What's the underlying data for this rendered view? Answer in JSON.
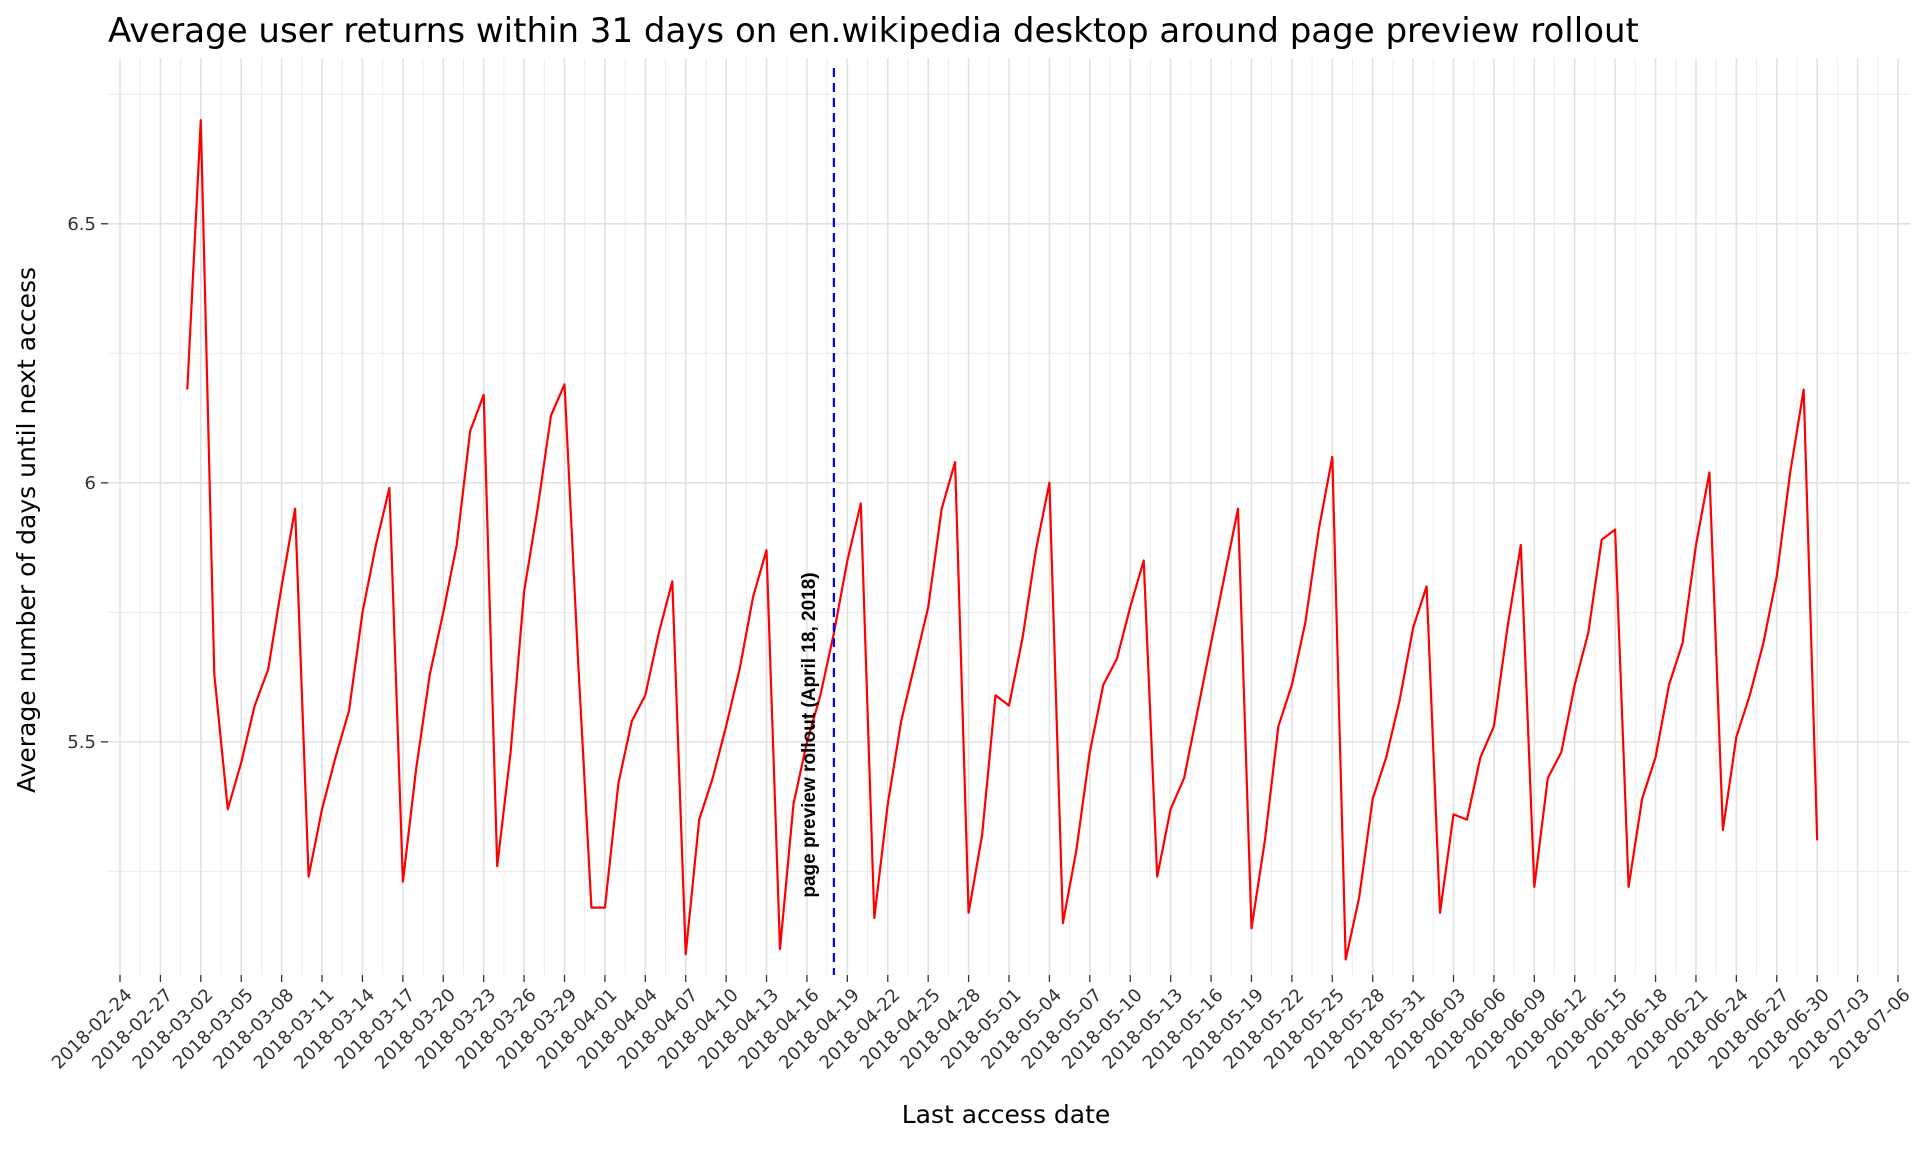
{
  "chart_data": {
    "type": "line",
    "title": "Average user returns within 31 days on en.wikipedia desktop around page preview rollout",
    "xlabel": "Last access date",
    "ylabel": "Average number of days until next access",
    "xlim": [
      "2018-02-24",
      "2018-07-06"
    ],
    "ylim": [
      5.05,
      6.82
    ],
    "x_ticks": [
      "2018-02-24",
      "2018-02-27",
      "2018-03-02",
      "2018-03-05",
      "2018-03-08",
      "2018-03-11",
      "2018-03-14",
      "2018-03-17",
      "2018-03-20",
      "2018-03-23",
      "2018-03-26",
      "2018-03-29",
      "2018-04-01",
      "2018-04-04",
      "2018-04-07",
      "2018-04-10",
      "2018-04-13",
      "2018-04-16",
      "2018-04-19",
      "2018-04-22",
      "2018-04-25",
      "2018-04-28",
      "2018-05-01",
      "2018-05-04",
      "2018-05-07",
      "2018-05-10",
      "2018-05-13",
      "2018-05-16",
      "2018-05-19",
      "2018-05-22",
      "2018-05-25",
      "2018-05-28",
      "2018-05-31",
      "2018-06-03",
      "2018-06-06",
      "2018-06-09",
      "2018-06-12",
      "2018-06-15",
      "2018-06-18",
      "2018-06-21",
      "2018-06-24",
      "2018-06-27",
      "2018-06-30",
      "2018-07-03",
      "2018-07-06"
    ],
    "y_ticks": [
      "5.5",
      "6",
      "6.5"
    ],
    "grid": true,
    "series": [
      {
        "color": "#ff0000",
        "x": [
          "2018-03-01",
          "2018-03-02",
          "2018-03-03",
          "2018-03-04",
          "2018-03-05",
          "2018-03-06",
          "2018-03-07",
          "2018-03-08",
          "2018-03-09",
          "2018-03-10",
          "2018-03-11",
          "2018-03-12",
          "2018-03-13",
          "2018-03-14",
          "2018-03-15",
          "2018-03-16",
          "2018-03-17",
          "2018-03-18",
          "2018-03-19",
          "2018-03-20",
          "2018-03-21",
          "2018-03-22",
          "2018-03-23",
          "2018-03-24",
          "2018-03-25",
          "2018-03-26",
          "2018-03-27",
          "2018-03-28",
          "2018-03-29",
          "2018-03-30",
          "2018-03-31",
          "2018-04-01",
          "2018-04-02",
          "2018-04-03",
          "2018-04-04",
          "2018-04-05",
          "2018-04-06",
          "2018-04-07",
          "2018-04-08",
          "2018-04-09",
          "2018-04-10",
          "2018-04-11",
          "2018-04-12",
          "2018-04-13",
          "2018-04-14",
          "2018-04-15",
          "2018-04-16",
          "2018-04-17",
          "2018-04-18",
          "2018-04-19",
          "2018-04-20",
          "2018-04-21",
          "2018-04-22",
          "2018-04-23",
          "2018-04-24",
          "2018-04-25",
          "2018-04-26",
          "2018-04-27",
          "2018-04-28",
          "2018-04-29",
          "2018-04-30",
          "2018-05-01",
          "2018-05-02",
          "2018-05-03",
          "2018-05-04",
          "2018-05-05",
          "2018-05-06",
          "2018-05-07",
          "2018-05-08",
          "2018-05-09",
          "2018-05-10",
          "2018-05-11",
          "2018-05-12",
          "2018-05-13",
          "2018-05-14",
          "2018-05-15",
          "2018-05-16",
          "2018-05-17",
          "2018-05-18",
          "2018-05-19",
          "2018-05-20",
          "2018-05-21",
          "2018-05-22",
          "2018-05-23",
          "2018-05-24",
          "2018-05-25",
          "2018-05-26",
          "2018-05-27",
          "2018-05-28",
          "2018-05-29",
          "2018-05-30",
          "2018-05-31",
          "2018-06-01",
          "2018-06-02",
          "2018-06-03",
          "2018-06-04",
          "2018-06-05",
          "2018-06-06",
          "2018-06-07",
          "2018-06-08",
          "2018-06-09",
          "2018-06-10",
          "2018-06-11",
          "2018-06-12",
          "2018-06-13",
          "2018-06-14",
          "2018-06-15",
          "2018-06-16",
          "2018-06-17",
          "2018-06-18",
          "2018-06-19",
          "2018-06-20",
          "2018-06-21",
          "2018-06-22",
          "2018-06-23",
          "2018-06-24",
          "2018-06-25",
          "2018-06-26",
          "2018-06-27",
          "2018-06-28",
          "2018-06-29",
          "2018-06-30"
        ],
        "y": [
          6.18,
          6.7,
          5.63,
          5.37,
          5.46,
          5.57,
          5.64,
          5.8,
          5.95,
          5.24,
          5.37,
          5.47,
          5.56,
          5.75,
          5.88,
          5.99,
          5.23,
          5.45,
          5.63,
          5.75,
          5.88,
          6.1,
          6.17,
          5.26,
          5.48,
          5.79,
          5.95,
          6.13,
          6.19,
          5.66,
          5.18,
          5.18,
          5.42,
          5.54,
          5.59,
          5.71,
          5.81,
          5.09,
          5.35,
          5.43,
          5.53,
          5.64,
          5.78,
          5.87,
          5.1,
          5.38,
          5.5,
          5.59,
          5.71,
          5.85,
          5.96,
          5.16,
          5.38,
          5.54,
          5.65,
          5.76,
          5.95,
          6.04,
          5.17,
          5.32,
          5.59,
          5.57,
          5.7,
          5.87,
          6.0,
          5.15,
          5.29,
          5.48,
          5.61,
          5.66,
          5.76,
          5.85,
          5.24,
          5.37,
          5.43,
          5.56,
          5.69,
          5.82,
          5.95,
          5.14,
          5.31,
          5.53,
          5.61,
          5.73,
          5.91,
          6.05,
          5.08,
          5.2,
          5.39,
          5.47,
          5.58,
          5.72,
          5.8,
          5.17,
          5.36,
          5.35,
          5.47,
          5.53,
          5.72,
          5.88,
          5.22,
          5.43,
          5.48,
          5.61,
          5.71,
          5.89,
          5.91,
          5.22,
          5.39,
          5.47,
          5.61,
          5.69,
          5.88,
          6.02,
          5.33,
          5.51,
          5.59,
          5.69,
          5.82,
          6.02,
          6.18,
          5.31
        ]
      }
    ],
    "annotation": {
      "date": "2018-04-18",
      "label": "page preview rollout (April 18, 2018)",
      "color": "#0000ff"
    }
  }
}
